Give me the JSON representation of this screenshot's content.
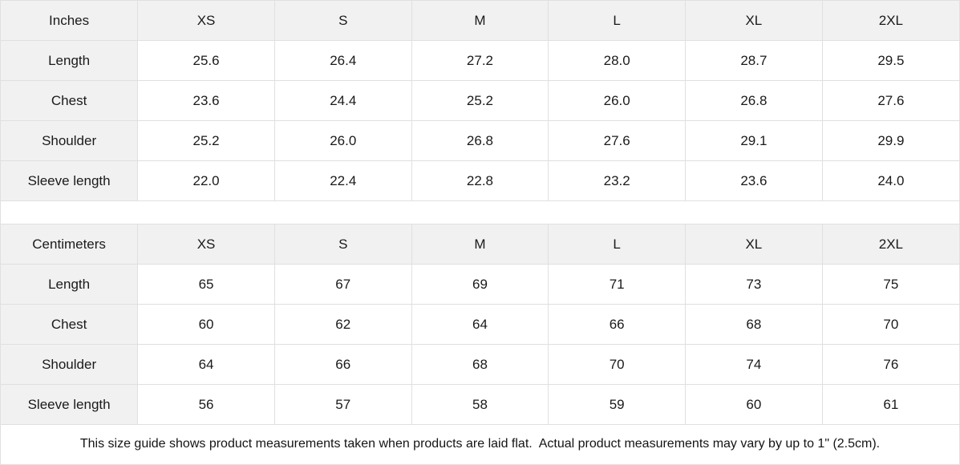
{
  "tables": [
    {
      "unit_label": "Inches",
      "sizes": [
        "XS",
        "S",
        "M",
        "L",
        "XL",
        "2XL"
      ],
      "rows": [
        {
          "label": "Length",
          "values": [
            "25.6",
            "26.4",
            "27.2",
            "28.0",
            "28.7",
            "29.5"
          ]
        },
        {
          "label": "Chest",
          "values": [
            "23.6",
            "24.4",
            "25.2",
            "26.0",
            "26.8",
            "27.6"
          ]
        },
        {
          "label": "Shoulder",
          "values": [
            "25.2",
            "26.0",
            "26.8",
            "27.6",
            "29.1",
            "29.9"
          ]
        },
        {
          "label": "Sleeve length",
          "values": [
            "22.0",
            "22.4",
            "22.8",
            "23.2",
            "23.6",
            "24.0"
          ]
        }
      ]
    },
    {
      "unit_label": "Centimeters",
      "sizes": [
        "XS",
        "S",
        "M",
        "L",
        "XL",
        "2XL"
      ],
      "rows": [
        {
          "label": "Length",
          "values": [
            "65",
            "67",
            "69",
            "71",
            "73",
            "75"
          ]
        },
        {
          "label": "Chest",
          "values": [
            "60",
            "62",
            "64",
            "66",
            "68",
            "70"
          ]
        },
        {
          "label": "Shoulder",
          "values": [
            "64",
            "66",
            "68",
            "70",
            "74",
            "76"
          ]
        },
        {
          "label": "Sleeve length",
          "values": [
            "56",
            "57",
            "58",
            "59",
            "60",
            "61"
          ]
        }
      ]
    }
  ],
  "footer": {
    "note": "This size guide shows product measurements taken when products are laid flat.  Actual product measurements may vary by up to 1\" (2.5cm)."
  },
  "colors": {
    "header_bg": "#f1f1f1",
    "border": "#e0e0e0",
    "text": "#1a1a1a"
  }
}
